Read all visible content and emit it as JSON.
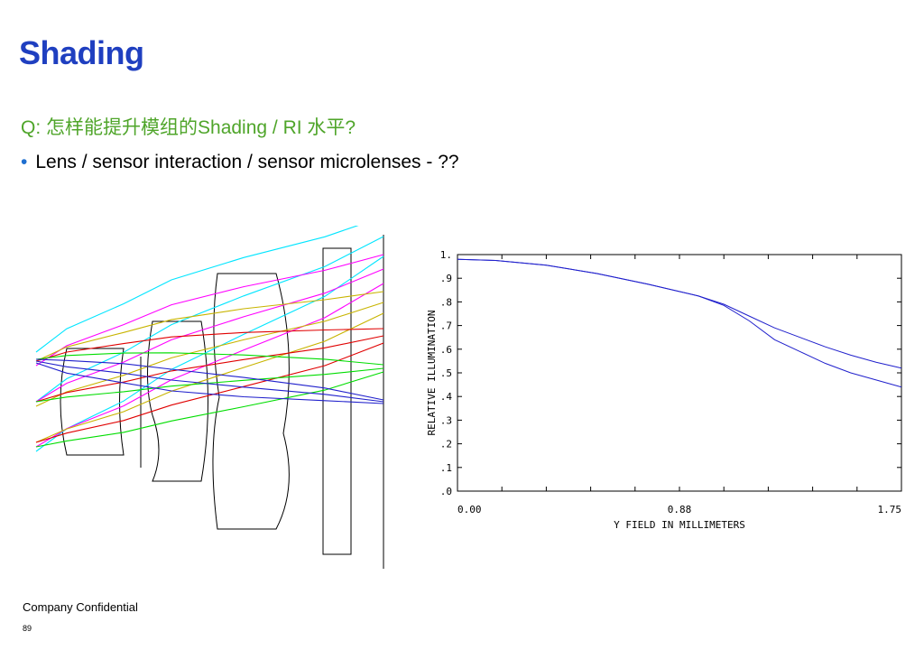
{
  "slide": {
    "title": "Shading",
    "question": "Q: 怎样能提升模组的Shading / RI 水平?",
    "bullets": [
      "Lens / sensor interaction / sensor microlenses - ??"
    ],
    "footer": "Company Confidential",
    "page_number": "89",
    "colors": {
      "title": "#1f3fc0",
      "question": "#4fa52a",
      "bullet": "#1f6fd0"
    }
  },
  "lens_diagram": {
    "ray_colors": [
      "#00e5ff",
      "#ff00ff",
      "#c8b400",
      "#e00000",
      "#00dd00",
      "#2020cc"
    ]
  },
  "chart_data": {
    "type": "line",
    "title": "",
    "xlabel": "Y FIELD IN MILLIMETERS",
    "ylabel": "RELATIVE ILLUMINATION",
    "xlim": [
      0,
      1.75
    ],
    "ylim": [
      0,
      1.0
    ],
    "x_tick_labels": [
      "0.00",
      "0.88",
      "1.75"
    ],
    "y_tick_labels": [
      ".0",
      ".1",
      ".2",
      ".3",
      ".4",
      ".5",
      ".6",
      ".7",
      ".8",
      ".9",
      "1."
    ],
    "grid": false,
    "series": [
      {
        "color": "#2020cc",
        "x": [
          0,
          0.15,
          0.35,
          0.55,
          0.75,
          0.95,
          1.05,
          1.15,
          1.25,
          1.35,
          1.45,
          1.55,
          1.65,
          1.75
        ],
        "y": [
          0.98,
          0.975,
          0.955,
          0.92,
          0.875,
          0.825,
          0.79,
          0.74,
          0.69,
          0.65,
          0.61,
          0.575,
          0.545,
          0.52
        ]
      },
      {
        "color": "#2020cc",
        "x": [
          0,
          0.15,
          0.35,
          0.55,
          0.75,
          0.95,
          1.05,
          1.15,
          1.25,
          1.35,
          1.45,
          1.55,
          1.65,
          1.75
        ],
        "y": [
          0.98,
          0.975,
          0.955,
          0.92,
          0.875,
          0.825,
          0.785,
          0.72,
          0.64,
          0.59,
          0.54,
          0.5,
          0.47,
          0.44
        ]
      }
    ]
  }
}
